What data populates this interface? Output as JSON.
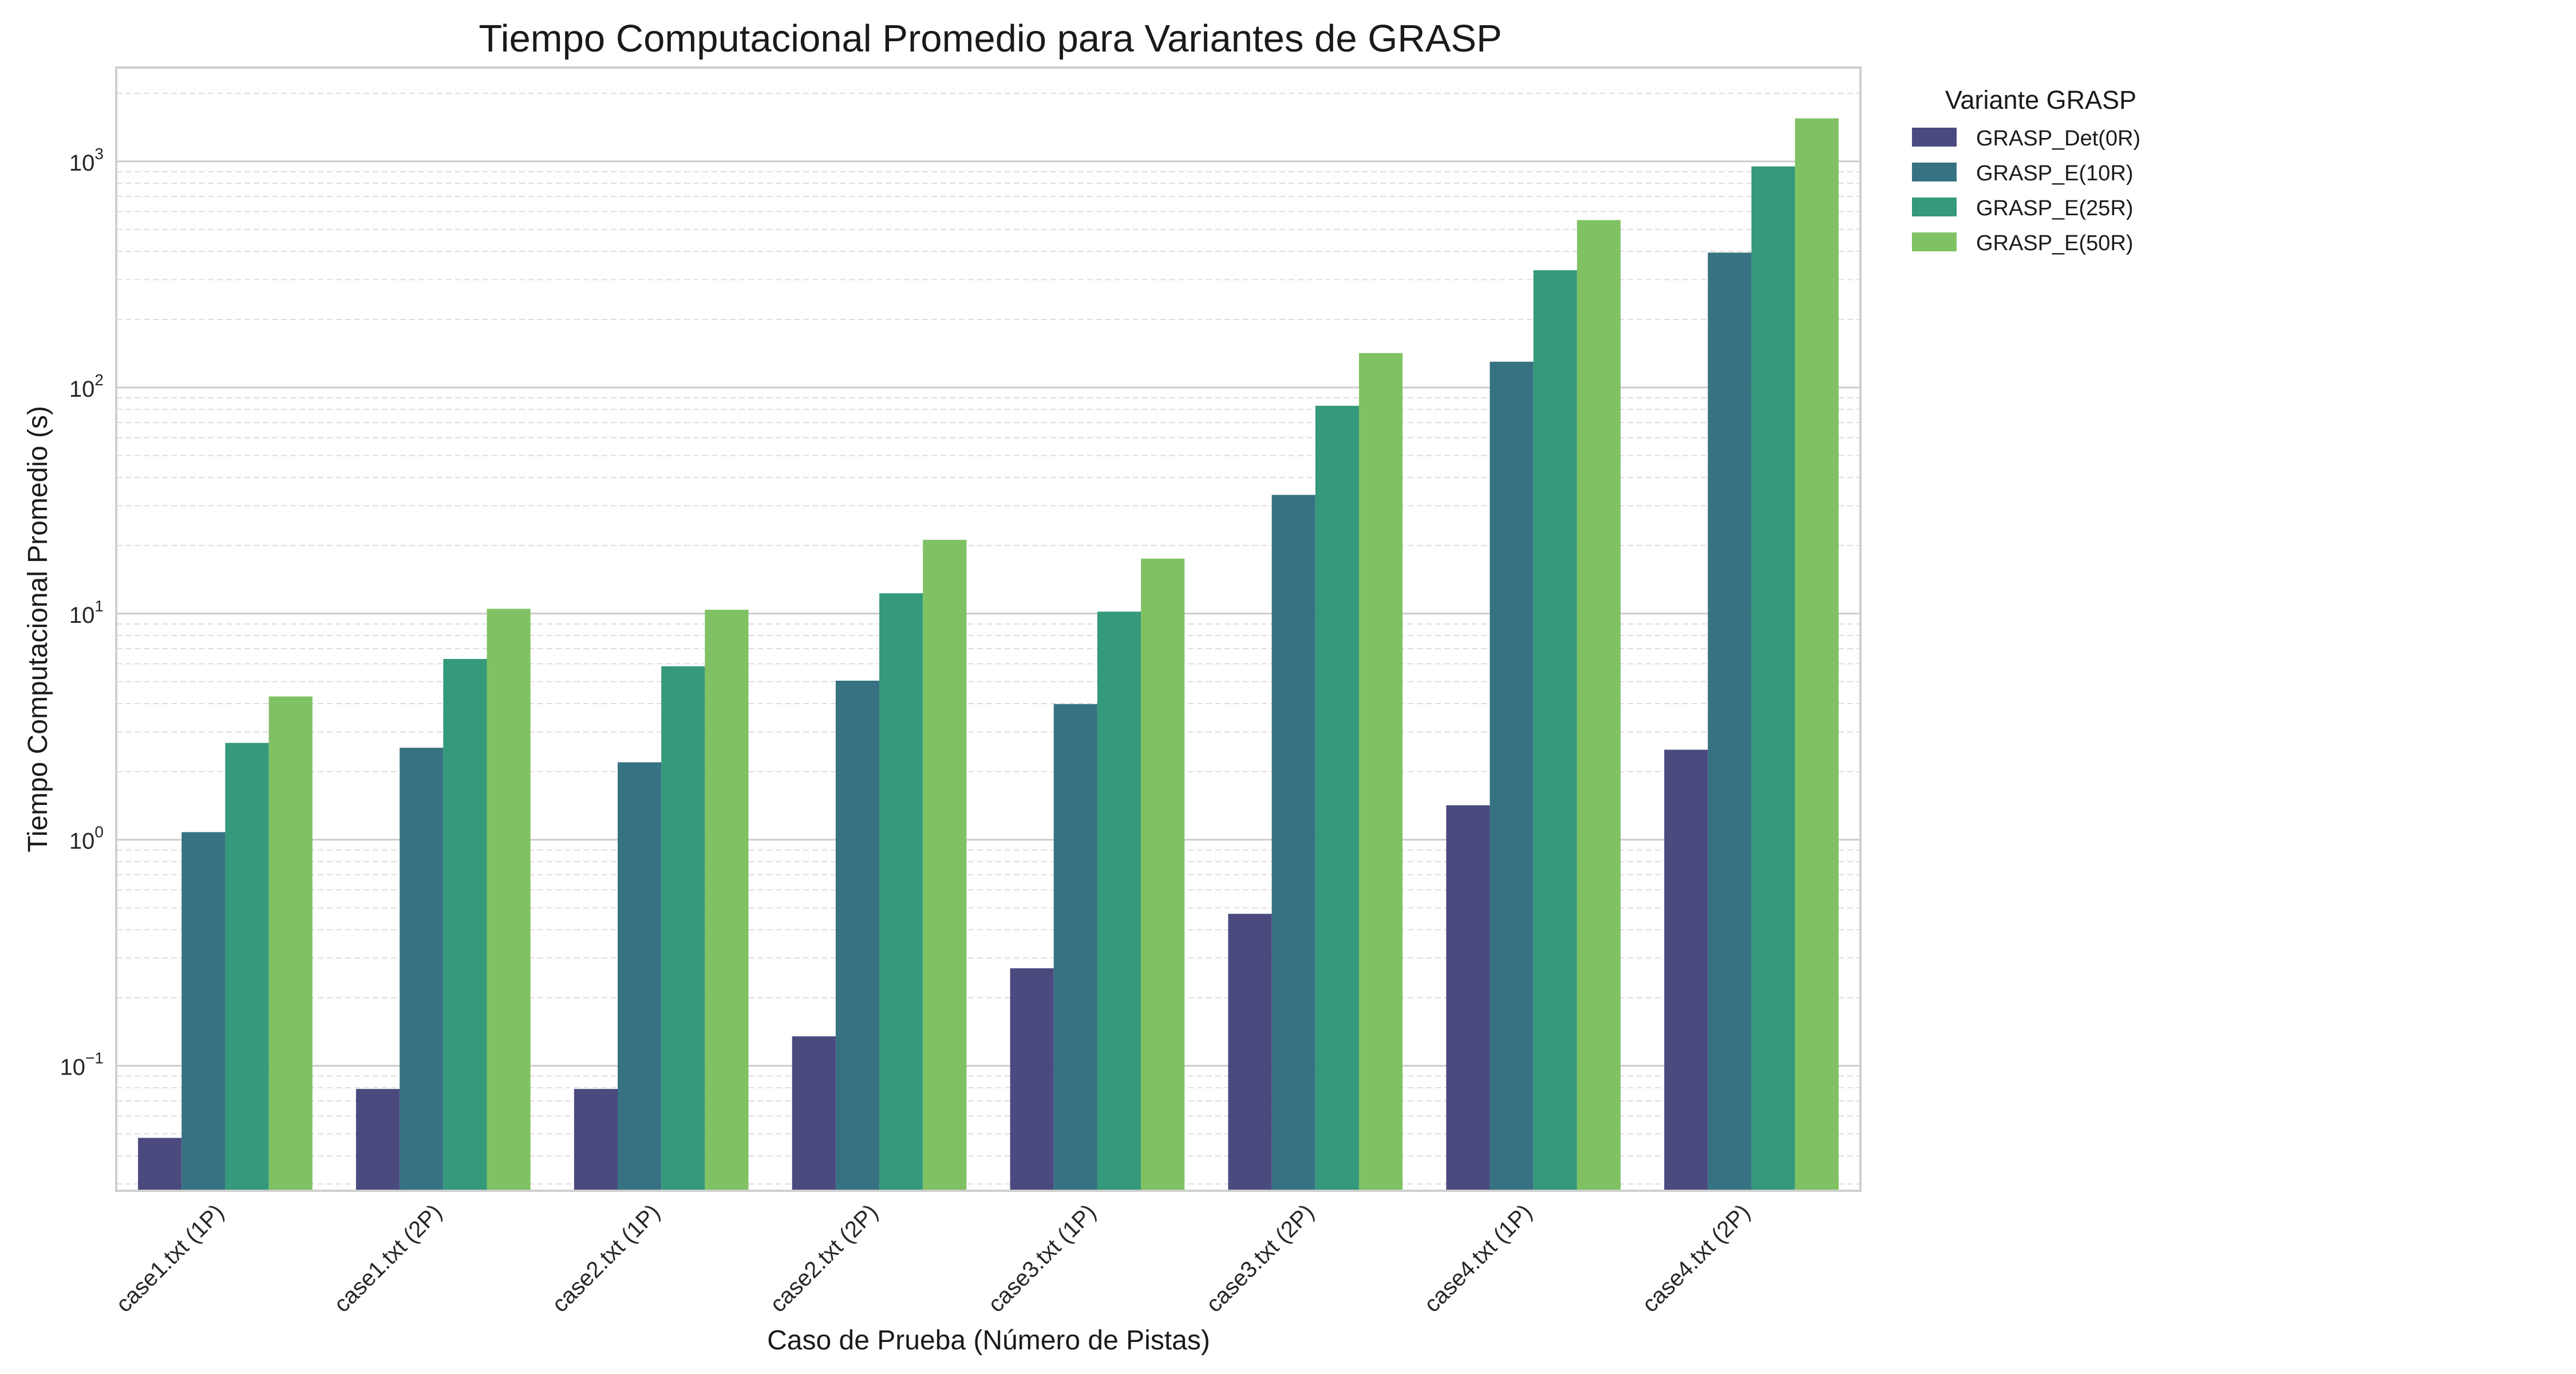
{
  "chart_data": {
    "type": "bar",
    "title": "Tiempo Computacional Promedio para Variantes de GRASP",
    "xlabel": "Caso de Prueba (Número de Pistas)",
    "ylabel": "Tiempo Computacional Promedio (s)",
    "yscale": "log",
    "ylim": [
      0.028,
      2600
    ],
    "y_major_ticks": [
      {
        "value": 0.1,
        "base": "10",
        "exp": "−1"
      },
      {
        "value": 1,
        "base": "10",
        "exp": "0"
      },
      {
        "value": 10,
        "base": "10",
        "exp": "1"
      },
      {
        "value": 100,
        "base": "10",
        "exp": "2"
      },
      {
        "value": 1000,
        "base": "10",
        "exp": "3"
      }
    ],
    "grid": true,
    "legend": {
      "title": "Variante GRASP",
      "placement": "outside-top-right"
    },
    "categories": [
      "case1.txt (1P)",
      "case1.txt (2P)",
      "case2.txt (1P)",
      "case2.txt (2P)",
      "case3.txt (1P)",
      "case3.txt (2P)",
      "case4.txt (1P)",
      "case4.txt (2P)"
    ],
    "series": [
      {
        "name": "GRASP_Det(0R)",
        "color": "#4a4a7f",
        "values": [
          0.048,
          0.079,
          0.079,
          0.135,
          0.27,
          0.47,
          1.42,
          2.5
        ]
      },
      {
        "name": "GRASP_E(10R)",
        "color": "#377282",
        "values": [
          1.08,
          2.55,
          2.2,
          5.05,
          3.98,
          33.5,
          130,
          395
        ]
      },
      {
        "name": "GRASP_E(25R)",
        "color": "#35997b",
        "values": [
          2.68,
          6.3,
          5.85,
          12.3,
          10.2,
          83,
          330,
          950
        ]
      },
      {
        "name": "GRASP_E(50R)",
        "color": "#80c263",
        "values": [
          4.3,
          10.5,
          10.4,
          21.2,
          17.5,
          142,
          550,
          1550
        ]
      }
    ]
  }
}
